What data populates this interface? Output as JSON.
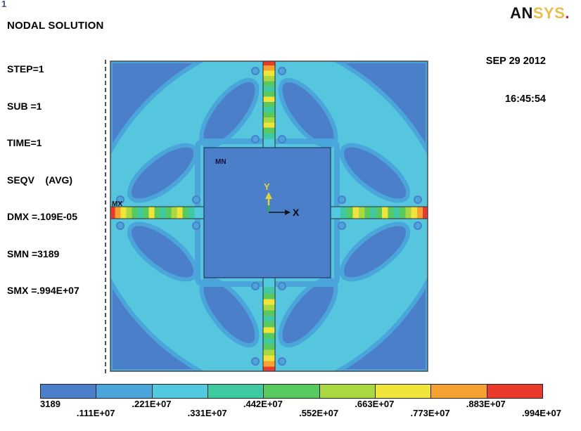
{
  "window_number": "1",
  "result_header": "NODAL SOLUTION",
  "result_info": [
    "STEP=1",
    "SUB =1",
    "TIME=1",
    "SEQV    (AVG)",
    "DMX =.109E-05",
    "SMN =3189",
    "SMX =.994E+07"
  ],
  "logo": {
    "part_black": "AN",
    "part_gold": "SYS",
    "dot": ".",
    "gold_color": "#e8bd4a",
    "dot_color": "#cf2030"
  },
  "timestamp": {
    "date": "SEP 29 2012",
    "time": "16:45:54"
  },
  "plot_labels": {
    "mn": "MN",
    "mx": "MX",
    "axis_x": "X",
    "axis_y": "Y"
  },
  "chart_data": {
    "type": "heatmap",
    "title": "NODAL SOLUTION — von Mises equivalent stress (SEQV) contour plot of a square plate with central mass suspended by four flexure beams",
    "analysis": {
      "step": 1,
      "substep": 1,
      "time": 1,
      "result_item": "SEQV (AVG)",
      "dmx": ".109E-05",
      "smn": 3189,
      "smx": 9940000
    },
    "legend_position": "bottom",
    "legend_labels": [
      "3189",
      ".111E+07",
      ".221E+07",
      ".331E+07",
      ".442E+07",
      ".552E+07",
      ".663E+07",
      ".773E+07",
      ".883E+07",
      ".994E+07"
    ],
    "legend_values": [
      3189,
      1110000,
      2210000,
      3310000,
      4420000,
      5520000,
      6630000,
      7730000,
      8830000,
      9940000
    ],
    "segment_colors": [
      "#4b7fc9",
      "#4aa6da",
      "#52c9de",
      "#3fc9a0",
      "#58c95e",
      "#a9d840",
      "#efe53a",
      "#f5a233",
      "#e93a2b"
    ],
    "field_colors": {
      "low_stress_lobes": "#4b7fc9",
      "background_field": "#56c5de",
      "transition": "#4aa6da"
    },
    "max_location": "left beam outer end (MX)",
    "min_location": "central mass upper-left (MN)"
  }
}
